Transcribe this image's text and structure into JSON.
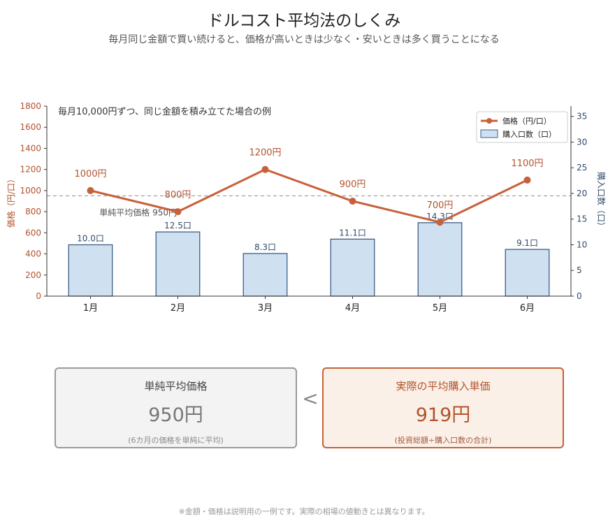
{
  "header": {
    "title": "ドルコスト平均法のしくみ",
    "subtitle": "毎月同じ金額で買い続けると、価格が高いときは少なく・安いときは多く買うことになる"
  },
  "chart_data": {
    "type": "bar",
    "annotation": "毎月10,000円ずつ、同じ金額を積み立てた場合の例",
    "categories": [
      "1月",
      "2月",
      "3月",
      "4月",
      "5月",
      "6月"
    ],
    "series": [
      {
        "name": "価格（円/口）",
        "kind": "line",
        "axis": "left",
        "values": [
          1000,
          800,
          1200,
          900,
          700,
          1100
        ],
        "labels": [
          "1000円",
          "800円",
          "1200円",
          "900円",
          "700円",
          "1100円"
        ],
        "color": "#c8613a"
      },
      {
        "name": "購入口数（口）",
        "kind": "bar",
        "axis": "right",
        "values": [
          10.0,
          12.5,
          8.3,
          11.1,
          14.3,
          9.1
        ],
        "labels": [
          "10.0口",
          "12.5口",
          "8.3口",
          "11.1口",
          "14.3口",
          "9.1口"
        ],
        "color": "#cfe0f1",
        "edge_color": "#3d5f87"
      }
    ],
    "left_axis": {
      "label": "価格（円/口）",
      "ylim": [
        0,
        1800
      ],
      "ticks": [
        0,
        200,
        400,
        600,
        800,
        1000,
        1200,
        1400,
        1600,
        1800
      ],
      "color": "#b2532d"
    },
    "right_axis": {
      "label": "購入口数（口）",
      "ylim": [
        0,
        37
      ],
      "ticks": [
        0,
        5,
        10,
        15,
        20,
        25,
        30,
        35
      ],
      "color": "#2f4b6b"
    },
    "reference_line": {
      "value": 950,
      "label": "単純平均価格 950円"
    },
    "legend_position": "top-right",
    "grid": false
  },
  "summary": {
    "simple": {
      "label": "単純平均価格",
      "value": "950円",
      "note": "(6カ月の価格を単純に平均)"
    },
    "comparator": "<",
    "actual": {
      "label": "実際の平均購入単価",
      "value": "919円",
      "note": "(投資総額÷購入口数の合計)"
    }
  },
  "footer": "※金額・価格は説明用の一例です。実際の相場の値動きとは異なります。"
}
